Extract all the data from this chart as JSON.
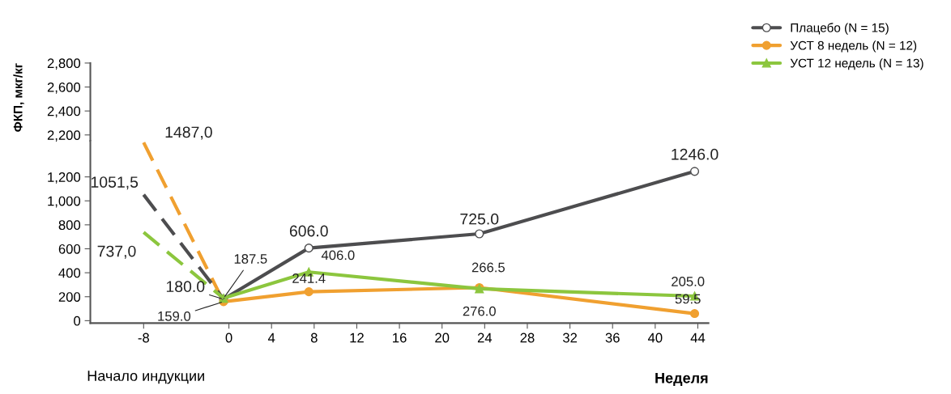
{
  "chart_data": [
    {
      "type": "line",
      "xlim": [
        -13,
        45
      ],
      "ylim": [
        2150,
        2800
      ],
      "yticks": [
        {
          "value": 2200,
          "label": "2,200"
        },
        {
          "value": 2400,
          "label": "2,400"
        },
        {
          "value": 2600,
          "label": "2,600"
        },
        {
          "value": 2800,
          "label": "2,800"
        }
      ],
      "tick_labels": "y"
    },
    {
      "type": "line",
      "ylabel": "ФКП, мкг/кг",
      "xlabel": "Неделя",
      "xlim": [
        -13,
        45
      ],
      "xticks": [
        -8,
        0,
        4,
        8,
        12,
        16,
        20,
        24,
        28,
        32,
        36,
        40,
        44
      ],
      "ylim": [
        -20,
        1500
      ],
      "yticks": [
        0,
        200,
        400,
        600,
        800,
        {
          "value": 1000,
          "label": "1,000"
        },
        {
          "value": 1200,
          "label": "1,200"
        }
      ],
      "legend": "top right",
      "series": [
        {
          "name": "Плацебо (N = 15)",
          "color": "#4d4d4f",
          "marker": "circle",
          "x": [
            -0.5,
            7.5,
            23.5,
            43.7
          ],
          "values": [
            180.0,
            606.0,
            725.0,
            1246.0
          ],
          "value_labels": [
            "180.0",
            "606.0",
            "725.0",
            "1246.0"
          ]
        },
        {
          "name": "УСТ 8 недель (N = 12)",
          "color": "#f0a030",
          "marker": "circle",
          "x": [
            -0.5,
            7.5,
            23.5,
            43.7
          ],
          "values": [
            159.0,
            241.4,
            276.0,
            59.5
          ],
          "value_labels": [
            "159.0",
            "241.4",
            "276.0",
            "59.5"
          ]
        },
        {
          "name": "УСТ 12 недель (N = 13)",
          "color": "#8cc63e",
          "marker": "triangle",
          "x": [
            -0.5,
            7.5,
            23.5,
            43.7
          ],
          "values": [
            187.5,
            406.0,
            266.5,
            205.0
          ],
          "value_labels": [
            "187.5",
            "406.0",
            "266.5",
            "205.0"
          ]
        },
        {
          "color": "#f0a030",
          "marker": "none",
          "line_style": "dashed",
          "x": [
            -8,
            -0.5
          ],
          "values": [
            1487.0,
            159.0
          ],
          "value_labels": [
            "1487,0",
            null
          ]
        },
        {
          "color": "#4d4d4f",
          "marker": "none",
          "line_style": "dashed",
          "x": [
            -8,
            -0.5
          ],
          "values": [
            1051.5,
            180.0
          ],
          "value_labels": [
            "1051,5",
            null
          ]
        },
        {
          "color": "#8cc63e",
          "marker": "none",
          "line_style": "dashed",
          "x": [
            -8,
            -0.5
          ],
          "values": [
            737.0,
            187.5
          ],
          "value_labels": [
            "737,0",
            null
          ]
        }
      ],
      "annotations": [
        "Начало индукции"
      ]
    }
  ]
}
